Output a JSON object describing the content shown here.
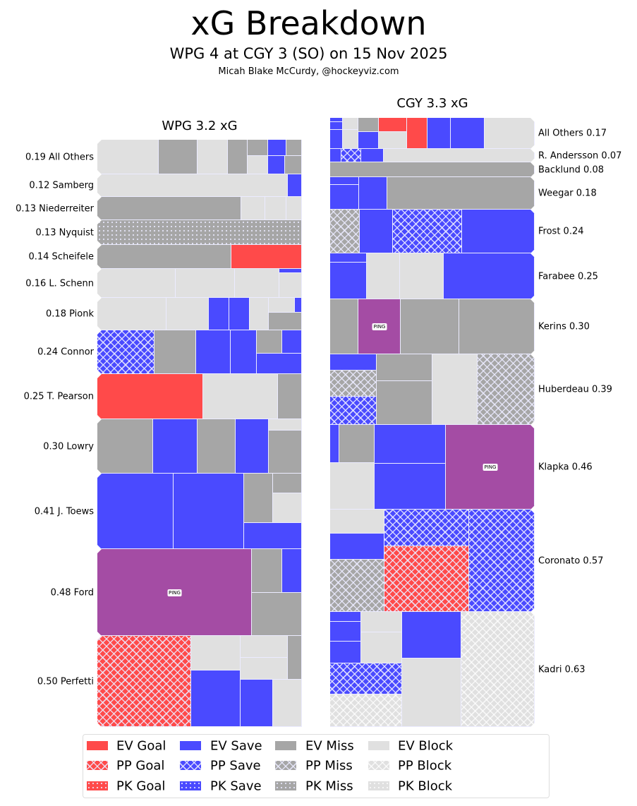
{
  "title": "xG Breakdown",
  "subtitle": "WPG 4 at CGY 3 (SO) on 15 Nov 2025",
  "author": "Micah Blake McCurdy, @hockeyviz.com",
  "ping_label": "PING",
  "colors": {
    "goal": "#ff4a4a",
    "save": "#4a4aff",
    "miss": "#a6a6a6",
    "block": "#e0e0e0",
    "ping": "#a44ca4"
  },
  "chart_data": {
    "type": "treemap",
    "title": "xG Breakdown",
    "teams": [
      {
        "title": "WPG 3.2 xG",
        "team": "WPG",
        "xg": 3.2,
        "players": [
          {
            "label": "0.19 All Others",
            "xg": 0.19,
            "shots": [
              "EB",
              "EM",
              "EB",
              "EM",
              "EM",
              "EB",
              "ES",
              "ES",
              "EM",
              "EM"
            ]
          },
          {
            "label": "0.12 Samberg",
            "xg": 0.12,
            "shots": [
              "EB",
              "ES"
            ]
          },
          {
            "label": "0.13 Niederreiter",
            "xg": 0.13,
            "shots": [
              "EM",
              "EB",
              "EB",
              "EB"
            ]
          },
          {
            "label": "0.13 Nyquist",
            "xg": 0.13,
            "shots": [
              "KM"
            ]
          },
          {
            "label": "0.14 Scheifele",
            "xg": 0.14,
            "shots": [
              "EM",
              "EG"
            ]
          },
          {
            "label": "0.16 L. Schenn",
            "xg": 0.16,
            "shots": [
              "EB",
              "EB",
              "EB",
              "ES",
              "EB"
            ]
          },
          {
            "label": "0.18 Pionk",
            "xg": 0.18,
            "shots": [
              "EB",
              "EB",
              "ES",
              "ES",
              "EB",
              "EB",
              "ES",
              "EM"
            ]
          },
          {
            "label": "0.24 Connor",
            "xg": 0.24,
            "shots": [
              "PS",
              "EM",
              "ES",
              "ES",
              "EM",
              "ES",
              "ES"
            ]
          },
          {
            "label": "0.25 T. Pearson",
            "xg": 0.25,
            "shots": [
              "EG",
              "EB",
              "EM"
            ]
          },
          {
            "label": "0.30 Lowry",
            "xg": 0.3,
            "shots": [
              "EM",
              "ES",
              "EM",
              "ES",
              "EB",
              "EM"
            ]
          },
          {
            "label": "0.41 J. Toews",
            "xg": 0.41,
            "shots": [
              "ES",
              "ES",
              "EM",
              "EM",
              "EB",
              "ES"
            ]
          },
          {
            "label": "0.48 Ford",
            "xg": 0.48,
            "shots": [
              "PING",
              "EM",
              "ES",
              "EM"
            ]
          },
          {
            "label": "0.50 Perfetti",
            "xg": 0.5,
            "shots": [
              "PG",
              "EB",
              "ES",
              "EB",
              "EB",
              "EM",
              "ES",
              "EB"
            ]
          }
        ]
      },
      {
        "title": "CGY 3.3 xG",
        "team": "CGY",
        "xg": 3.3,
        "players": [
          {
            "label": "All Others 0.17",
            "xg": 0.17,
            "shots": [
              "ES",
              "ES",
              "ES",
              "EB",
              "EB",
              "EM",
              "ES",
              "EG",
              "EB",
              "EG",
              "ES",
              "ES",
              "EB"
            ]
          },
          {
            "label": "R. Andersson 0.07",
            "xg": 0.07,
            "shots": [
              "ES",
              "PS",
              "ES",
              "EB"
            ]
          },
          {
            "label": "Backlund 0.08",
            "xg": 0.08,
            "shots": [
              "EM"
            ]
          },
          {
            "label": "Weegar 0.18",
            "xg": 0.18,
            "shots": [
              "ES",
              "ES",
              "ES",
              "EM"
            ]
          },
          {
            "label": "Frost 0.24",
            "xg": 0.24,
            "shots": [
              "PM",
              "ES",
              "PS",
              "ES"
            ]
          },
          {
            "label": "Farabee 0.25",
            "xg": 0.25,
            "shots": [
              "ES",
              "ES",
              "EB",
              "EB",
              "ES"
            ]
          },
          {
            "label": "Kerins 0.30",
            "xg": 0.3,
            "shots": [
              "EM",
              "PING",
              "EM",
              "EM"
            ]
          },
          {
            "label": "Huberdeau 0.39",
            "xg": 0.39,
            "shots": [
              "ES",
              "PM",
              "PS",
              "EM",
              "EM",
              "EB",
              "PM"
            ]
          },
          {
            "label": "Klapka 0.46",
            "xg": 0.46,
            "shots": [
              "ES",
              "EM",
              "EB",
              "ES",
              "ES",
              "PING"
            ]
          },
          {
            "label": "Coronato 0.57",
            "xg": 0.57,
            "shots": [
              "EB",
              "ES",
              "PM",
              "PS",
              "PG",
              "PS"
            ]
          },
          {
            "label": "Kadri 0.63",
            "xg": 0.63,
            "shots": [
              "ES",
              "ES",
              "ES",
              "EB",
              "EB",
              "PS",
              "PB",
              "ES",
              "EB",
              "PB"
            ]
          }
        ]
      }
    ],
    "legend": {
      "placement": "bottom",
      "entries": [
        {
          "code": "EG",
          "label": "EV Goal"
        },
        {
          "code": "ES",
          "label": "EV Save"
        },
        {
          "code": "EM",
          "label": "EV Miss"
        },
        {
          "code": "EB",
          "label": "EV Block"
        },
        {
          "code": "PG",
          "label": "PP Goal"
        },
        {
          "code": "PS",
          "label": "PP Save"
        },
        {
          "code": "PM",
          "label": "PP Miss"
        },
        {
          "code": "PB",
          "label": "PP Block"
        },
        {
          "code": "KG",
          "label": "PK Goal"
        },
        {
          "code": "KS",
          "label": "PK Save"
        },
        {
          "code": "KM",
          "label": "PK Miss"
        },
        {
          "code": "KB",
          "label": "PK Block"
        }
      ]
    }
  }
}
